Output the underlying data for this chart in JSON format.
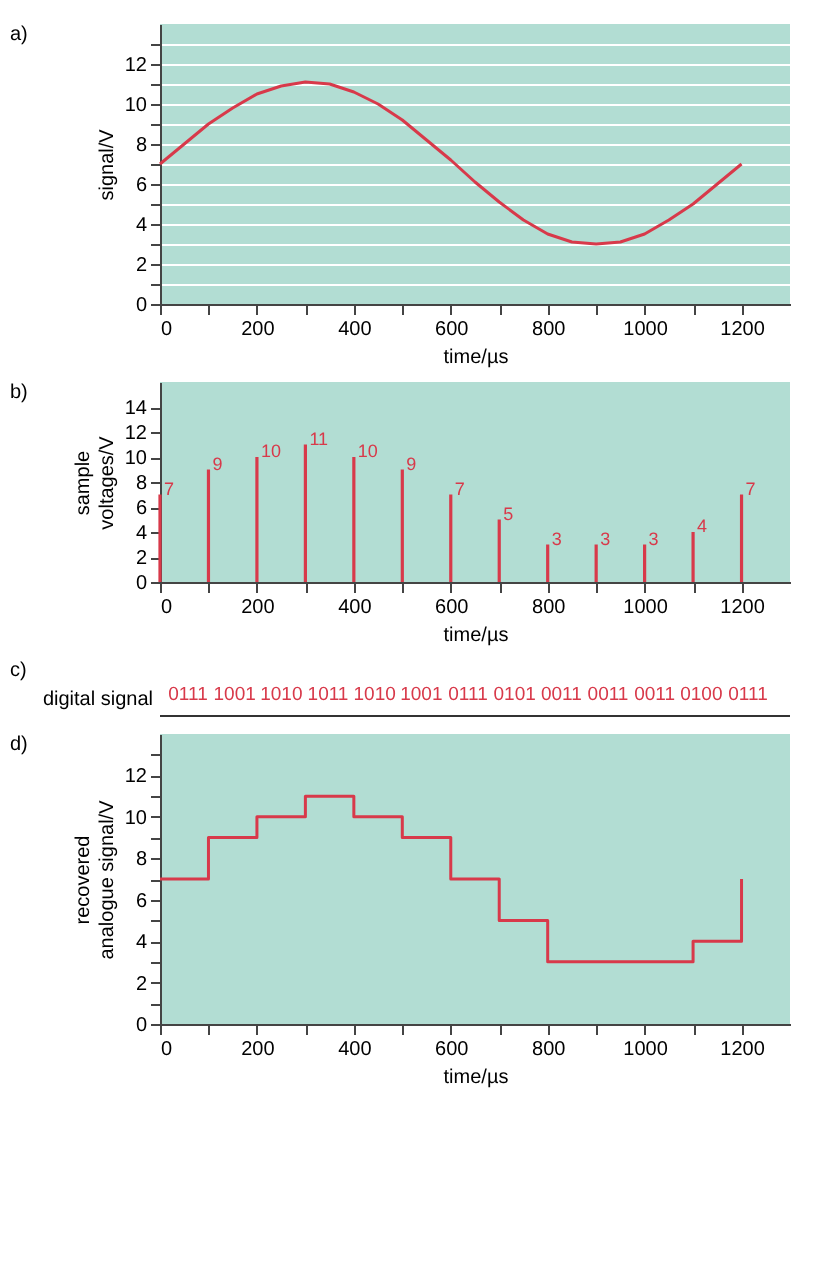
{
  "chart_data": [
    {
      "type": "line",
      "title": "a)",
      "xlabel": "time/µs",
      "ylabel": "signal/V",
      "xlim": [
        0,
        1300
      ],
      "ylim": [
        0,
        14
      ],
      "xticks": [
        0,
        {
          "value": 100,
          "label": null
        },
        200,
        {
          "value": 300,
          "label": null
        },
        400,
        {
          "value": 500,
          "label": null
        },
        600,
        {
          "value": 700,
          "label": null
        },
        800,
        {
          "value": 900,
          "label": null
        },
        1000,
        {
          "value": 1100,
          "label": null
        },
        1200
      ],
      "yticks": [
        0,
        {
          "value": 1,
          "label": null
        },
        2,
        {
          "value": 3,
          "label": null
        },
        4,
        {
          "value": 5,
          "label": null
        },
        6,
        {
          "value": 7,
          "label": null
        },
        8,
        {
          "value": 9,
          "label": null
        },
        10,
        {
          "value": 11,
          "label": null
        },
        12,
        {
          "value": 13,
          "label": null
        }
      ],
      "grid": "y",
      "x": [
        0,
        50,
        100,
        150,
        200,
        250,
        300,
        350,
        400,
        450,
        500,
        550,
        600,
        650,
        700,
        750,
        800,
        850,
        900,
        950,
        1000,
        1050,
        1100,
        1150,
        1200
      ],
      "series": [
        {
          "color": "#d8394a",
          "values": [
            7.0,
            8.0,
            9.0,
            9.8,
            10.5,
            10.9,
            11.1,
            11.0,
            10.6,
            10.0,
            9.2,
            8.2,
            7.2,
            6.1,
            5.1,
            4.2,
            3.5,
            3.1,
            3.0,
            3.1,
            3.5,
            4.2,
            5.0,
            6.0,
            7.0
          ]
        }
      ]
    },
    {
      "type": "bar",
      "title": "b)",
      "xlabel": "time/µs",
      "ylabel": "sample voltages/V",
      "xlim": [
        0,
        1300
      ],
      "ylim": [
        0,
        16
      ],
      "xticks": [
        0,
        {
          "value": 100,
          "label": null
        },
        200,
        {
          "value": 300,
          "label": null
        },
        400,
        {
          "value": 500,
          "label": null
        },
        600,
        {
          "value": 700,
          "label": null
        },
        800,
        {
          "value": 900,
          "label": null
        },
        1000,
        {
          "value": 1100,
          "label": null
        },
        1200
      ],
      "yticks": [
        0,
        2,
        4,
        6,
        8,
        10,
        12,
        14
      ],
      "data_labels": true,
      "x": [
        0,
        100,
        200,
        300,
        400,
        500,
        600,
        700,
        800,
        900,
        1000,
        1100,
        1200
      ],
      "series": [
        {
          "color": "#d8394a",
          "values": [
            7,
            9,
            10,
            11,
            10,
            9,
            7,
            5,
            3,
            3,
            3,
            4,
            7
          ]
        }
      ]
    },
    {
      "type": "other",
      "title": "c)",
      "ylabel": "digital signal",
      "annotations": [
        "0111",
        "1001",
        "1010",
        "1011",
        "1010",
        "1001",
        "0111",
        "0101",
        "0011",
        "0011",
        "0011",
        "0100",
        "0111"
      ]
    },
    {
      "type": "step",
      "title": "d)",
      "xlabel": "time/µs",
      "ylabel": "recovered analogue signal/V",
      "xlim": [
        0,
        1300
      ],
      "ylim": [
        0,
        14
      ],
      "xticks": [
        0,
        {
          "value": 100,
          "label": null
        },
        200,
        {
          "value": 300,
          "label": null
        },
        400,
        {
          "value": 500,
          "label": null
        },
        600,
        {
          "value": 700,
          "label": null
        },
        800,
        {
          "value": 900,
          "label": null
        },
        1000,
        {
          "value": 1100,
          "label": null
        },
        1200
      ],
      "yticks": [
        0,
        {
          "value": 1,
          "label": null
        },
        2,
        {
          "value": 3,
          "label": null
        },
        4,
        {
          "value": 5,
          "label": null
        },
        6,
        {
          "value": 7,
          "label": null
        },
        8,
        {
          "value": 9,
          "label": null
        },
        10,
        {
          "value": 11,
          "label": null
        },
        12,
        {
          "value": 13,
          "label": null
        }
      ],
      "x": [
        0,
        100,
        200,
        300,
        400,
        500,
        600,
        700,
        800,
        900,
        1000,
        1100,
        1200
      ],
      "series": [
        {
          "color": "#d8394a",
          "values": [
            7,
            9,
            10,
            11,
            10,
            9,
            7,
            5,
            3,
            3,
            3,
            4,
            7
          ]
        }
      ]
    }
  ]
}
